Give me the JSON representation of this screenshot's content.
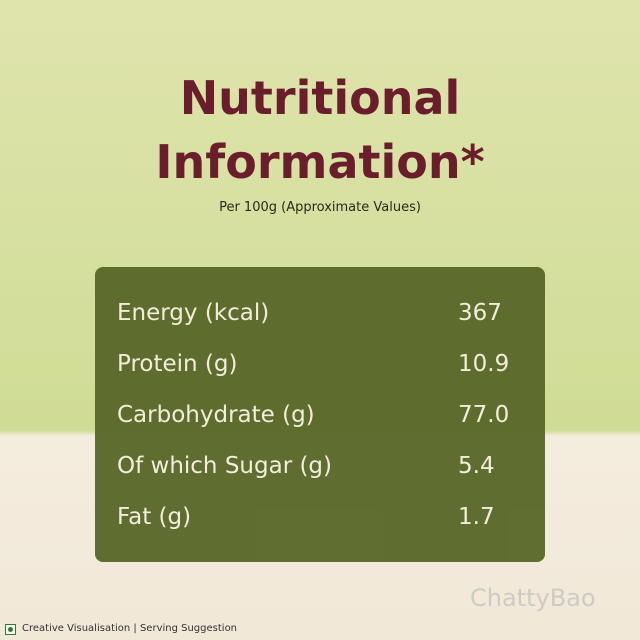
{
  "header": {
    "title_lines": [
      "Nutritional",
      "Information*"
    ],
    "subtitle": "Per 100g (Approximate Values)"
  },
  "table": {
    "rows": [
      [
        "Energy (kcal)",
        "367"
      ],
      [
        "Protein (g)",
        "10.9"
      ],
      [
        "Carbohydrate (g)",
        "77.0"
      ],
      [
        "Of which Sugar (g)",
        "5.4"
      ],
      [
        "Fat (g)",
        "1.7"
      ]
    ]
  },
  "footer": {
    "note": "Creative Visualisation | Serving Suggestion",
    "watermark": "ChattyBao"
  }
}
